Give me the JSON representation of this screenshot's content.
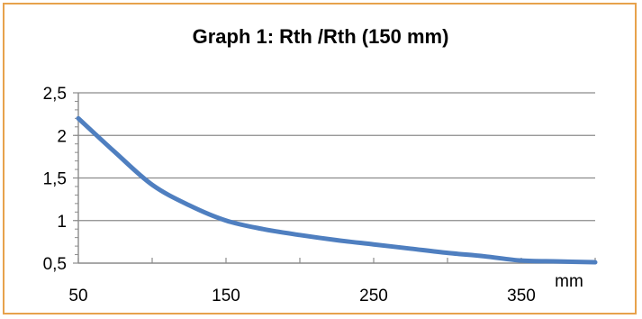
{
  "chart_data": {
    "type": "line",
    "title": "Graph 1: Rth /Rth (150 mm)",
    "xlabel": "mm",
    "ylabel": "",
    "xlim": [
      50,
      400
    ],
    "ylim": [
      0.5,
      2.5
    ],
    "x_ticks": [
      50,
      150,
      250,
      350
    ],
    "x_tick_labels": [
      "50",
      "150",
      "250",
      "350"
    ],
    "y_ticks": [
      0.5,
      1,
      1.5,
      2,
      2.5
    ],
    "y_tick_labels": [
      "0,5",
      "1",
      "1,5",
      "2",
      "2,5"
    ],
    "grid": "horizontal",
    "legend": "none",
    "series": [
      {
        "color": "#4f7fc0",
        "x": [
          50,
          75,
          100,
          125,
          150,
          175,
          200,
          225,
          250,
          275,
          300,
          325,
          350,
          375,
          400
        ],
        "y": [
          2.2,
          1.8,
          1.42,
          1.18,
          1.0,
          0.9,
          0.83,
          0.77,
          0.72,
          0.67,
          0.62,
          0.58,
          0.53,
          0.52,
          0.51
        ]
      }
    ]
  }
}
